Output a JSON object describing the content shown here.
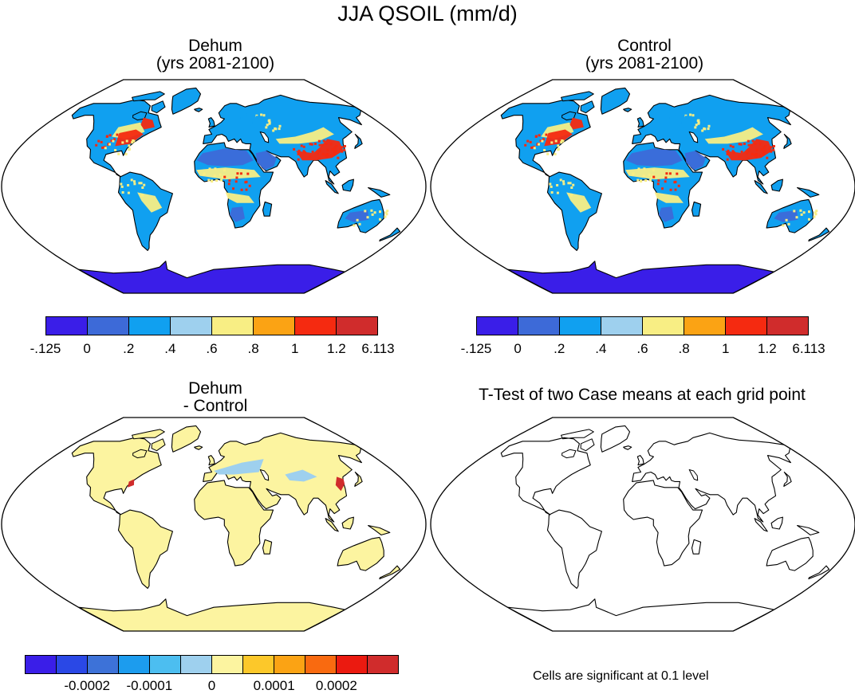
{
  "title": "JJA QSOIL (mm/d)",
  "panels": {
    "dehum": {
      "title_line1": "Dehum",
      "title_line2": "(yrs 2081-2100)"
    },
    "control": {
      "title_line1": "Control",
      "title_line2": "(yrs 2081-2100)"
    },
    "diff": {
      "title_line1": "Dehum",
      "title_line2": "- Control"
    },
    "ttest": {
      "title": "T-Test of two Case means at each grid point",
      "note": "Cells are significant at 0.1 level"
    }
  },
  "colorbar_top": {
    "colors": [
      "#3a1ee8",
      "#3d6ad8",
      "#10a0f0",
      "#9ed0ee",
      "#f8ee84",
      "#fba314",
      "#f52a10",
      "#d02c2c"
    ],
    "labels": [
      "-.125",
      "0",
      ".2",
      ".4",
      ".6",
      ".8",
      "1",
      "1.2",
      "6.113"
    ]
  },
  "colorbar_diff": {
    "colors": [
      "#3a1ee8",
      "#2a48e6",
      "#3d72d8",
      "#1c9cee",
      "#4cbef0",
      "#9ed0ee",
      "#fcf4a0",
      "#fcc82a",
      "#fba314",
      "#f96a10",
      "#eb1a10",
      "#d02c2c"
    ],
    "labels": [
      "-0.0002",
      "-0.0001",
      "0",
      "0.0001",
      "0.0002"
    ]
  },
  "map_colors": {
    "antarctica": "#3a1ee8",
    "desert": "#3d6ad8",
    "lightblue": "#10a0f0",
    "yellow": "#f8ee84",
    "red": "#f52a10",
    "diff_land": "#fcf4a0",
    "diff_blue": "#9ed0ee",
    "diff_red": "#d02c2c"
  }
}
